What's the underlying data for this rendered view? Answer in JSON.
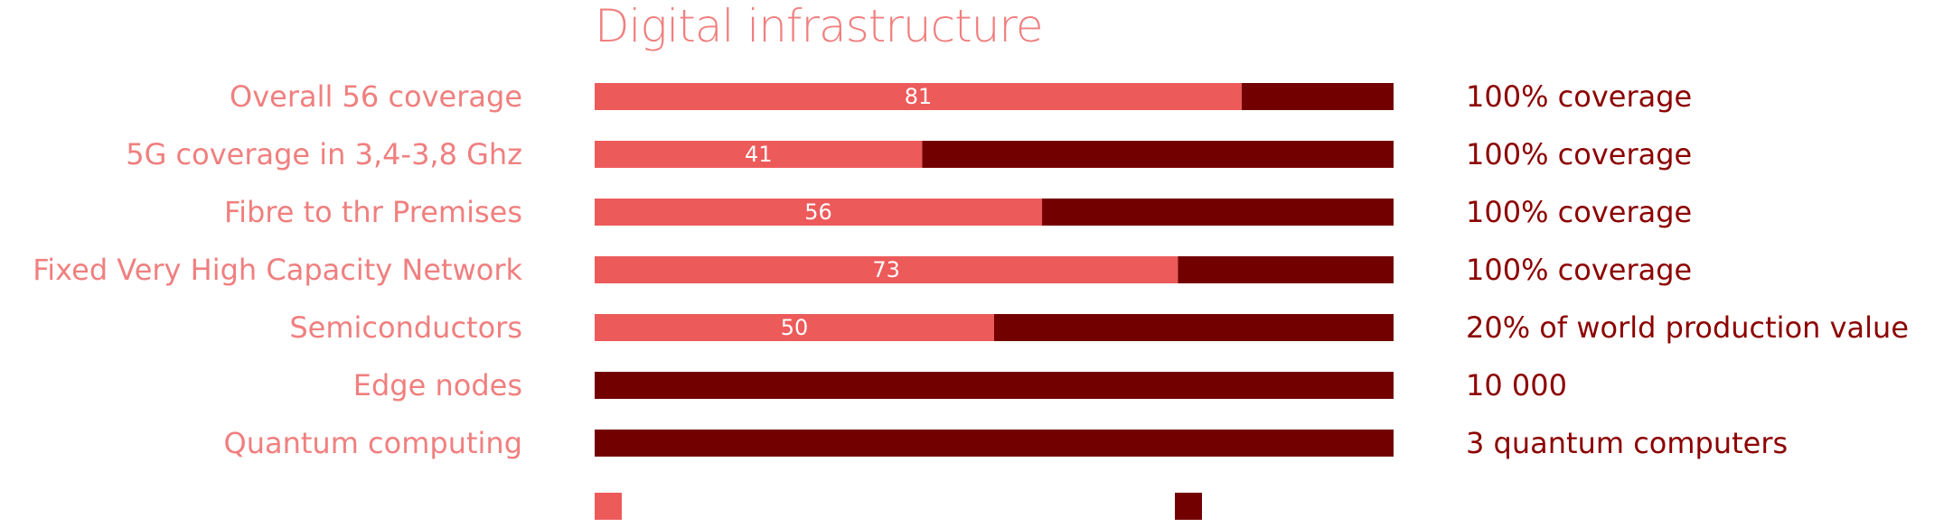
{
  "colors": {
    "achieved": "#ed5a5a",
    "remaining": "#730000",
    "label": "#f07f7f",
    "target": "#8c0000"
  },
  "chart_data": {
    "type": "bar",
    "orientation": "horizontal",
    "stacked": true,
    "title": "Digital infrastructure",
    "xlim": [
      0,
      100
    ],
    "categories": [
      "Overall 56 coverage",
      "5G coverage in 3,4-3,8 Ghz",
      "Fibre to thr Premises",
      "Fixed Very High Capacity Network",
      "Semiconductors",
      "Edge nodes",
      "Quantum computing"
    ],
    "series": [
      {
        "values": [
          81,
          41,
          56,
          73,
          50,
          0,
          0
        ],
        "data_labels": [
          "81",
          "41",
          "56",
          "73",
          "50",
          "",
          ""
        ]
      },
      {
        "values": [
          19,
          59,
          44,
          27,
          50,
          100,
          100
        ]
      }
    ],
    "targets": [
      "100% coverage",
      "100% coverage",
      "100% coverage",
      "100% coverage",
      "20% of world production value",
      "10 000",
      "3 quantum computers"
    ],
    "legend": {
      "position": "bottom",
      "entries": [
        "",
        ""
      ]
    },
    "grid": false
  }
}
